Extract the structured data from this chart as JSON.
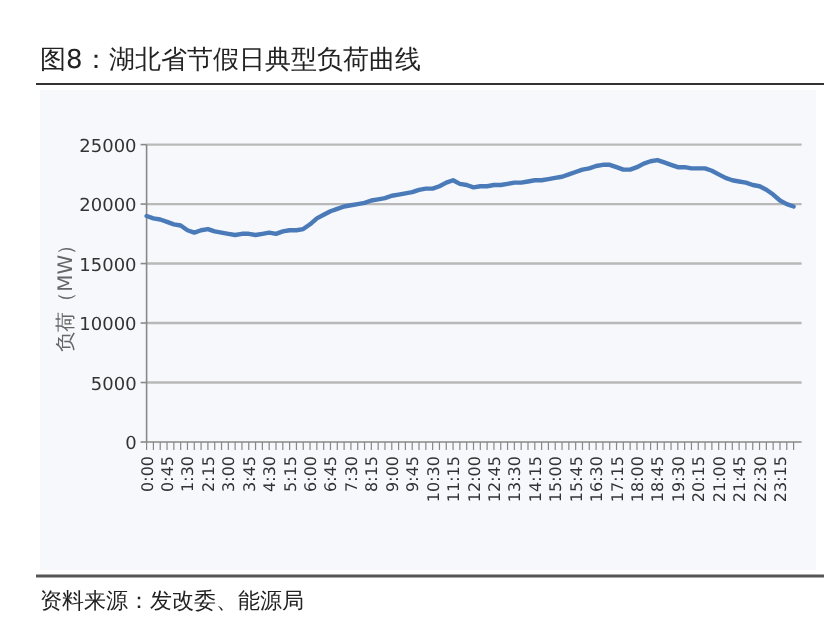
{
  "chart_data": {
    "type": "line",
    "title": "图8：湖北省节假日典型负荷曲线",
    "ylabel": "负荷（MW）",
    "annotations": [
      "资料来源：发改委、能源局"
    ],
    "categories": [
      "0:00",
      null,
      null,
      "0:45",
      null,
      null,
      "1:30",
      null,
      null,
      "2:15",
      null,
      null,
      "3:00",
      null,
      null,
      "3:45",
      null,
      null,
      "4:30",
      null,
      null,
      "5:15",
      null,
      null,
      "6:00",
      null,
      null,
      "6:45",
      null,
      null,
      "7:30",
      null,
      null,
      "8:15",
      null,
      null,
      "9:00",
      null,
      null,
      "9:45",
      null,
      null,
      "10:30",
      null,
      null,
      "11:15",
      null,
      null,
      "12:00",
      null,
      null,
      "12:45",
      null,
      null,
      "13:30",
      null,
      null,
      "14:15",
      null,
      null,
      "15:00",
      null,
      null,
      "15:45",
      null,
      null,
      "16:30",
      null,
      null,
      "17:15",
      null,
      null,
      "18:00",
      null,
      null,
      "18:45",
      null,
      null,
      "19:30",
      null,
      null,
      "20:15",
      null,
      null,
      "21:00",
      null,
      null,
      "21:45",
      null,
      null,
      "22:30",
      null,
      null,
      "23:15",
      null,
      null
    ],
    "series": [
      {
        "color": "#4a7ab8",
        "values": [
          19000,
          18800,
          18700,
          18500,
          18300,
          18200,
          17800,
          17600,
          17800,
          17900,
          17700,
          17600,
          17500,
          17400,
          17500,
          17500,
          17400,
          17500,
          17600,
          17500,
          17700,
          17800,
          17800,
          17900,
          18300,
          18800,
          19100,
          19400,
          19600,
          19800,
          19900,
          20000,
          20100,
          20300,
          20400,
          20500,
          20700,
          20800,
          20900,
          21000,
          21200,
          21300,
          21300,
          21500,
          21800,
          22000,
          21700,
          21600,
          21400,
          21500,
          21500,
          21600,
          21600,
          21700,
          21800,
          21800,
          21900,
          22000,
          22000,
          22100,
          22200,
          22300,
          22500,
          22700,
          22900,
          23000,
          23200,
          23300,
          23300,
          23100,
          22900,
          22900,
          23100,
          23400,
          23600,
          23700,
          23500,
          23300,
          23100,
          23100,
          23000,
          23000,
          23000,
          22800,
          22500,
          22200,
          22000,
          21900,
          21800,
          21600,
          21500,
          21200,
          20800,
          20300,
          20000,
          19800
        ]
      }
    ],
    "ylim": [
      0,
      25000
    ],
    "yticks": [
      0,
      5000,
      10000,
      15000,
      20000,
      25000
    ],
    "grid": "y"
  }
}
